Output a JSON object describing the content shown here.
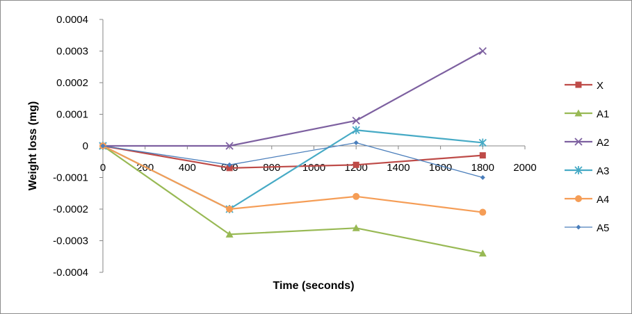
{
  "chart_data": {
    "type": "line",
    "title": "",
    "xlabel": "Time (seconds)",
    "ylabel": "Weight loss (mg)",
    "xlim": [
      0,
      2000
    ],
    "ylim": [
      -0.0004,
      0.0004
    ],
    "x_ticks": [
      "0",
      "200",
      "400",
      "600",
      "800",
      "1000",
      "1200",
      "1400",
      "1600",
      "1800",
      "2000"
    ],
    "y_ticks": [
      "0.0004",
      "0.0003",
      "0.0002",
      "0.0001",
      "0",
      "-0.0001",
      "-0.0002",
      "-0.0003",
      "-0.0004"
    ],
    "grid": false,
    "legend_position": "right",
    "series": [
      {
        "name": "X",
        "color": "#be4b48",
        "marker": "square",
        "x": [
          0,
          600,
          1200,
          1800
        ],
        "y": [
          0,
          -7e-05,
          -6e-05,
          -3e-05
        ]
      },
      {
        "name": "A1",
        "color": "#98b954",
        "marker": "triangle",
        "x": [
          0,
          600,
          1200,
          1800
        ],
        "y": [
          0,
          -0.00028,
          -0.00026,
          -0.00034
        ]
      },
      {
        "name": "A2",
        "color": "#7d60a0",
        "marker": "x",
        "x": [
          0,
          600,
          1200,
          1800
        ],
        "y": [
          0,
          0,
          8e-05,
          0.0003
        ]
      },
      {
        "name": "A3",
        "color": "#46aac5",
        "marker": "star",
        "x": [
          0,
          600,
          1200,
          1800
        ],
        "y": [
          0,
          -0.0002,
          5e-05,
          1e-05
        ]
      },
      {
        "name": "A4",
        "color": "#f59d56",
        "marker": "circle",
        "x": [
          0,
          600,
          1200,
          1800
        ],
        "y": [
          0,
          -0.0002,
          -0.00016,
          -0.00021
        ]
      },
      {
        "name": "A5",
        "color": "#4a7ebb",
        "marker": "diamond",
        "x": [
          0,
          600,
          1200,
          1800
        ],
        "y": [
          0,
          -6e-05,
          1e-05,
          -0.0001
        ]
      }
    ]
  }
}
